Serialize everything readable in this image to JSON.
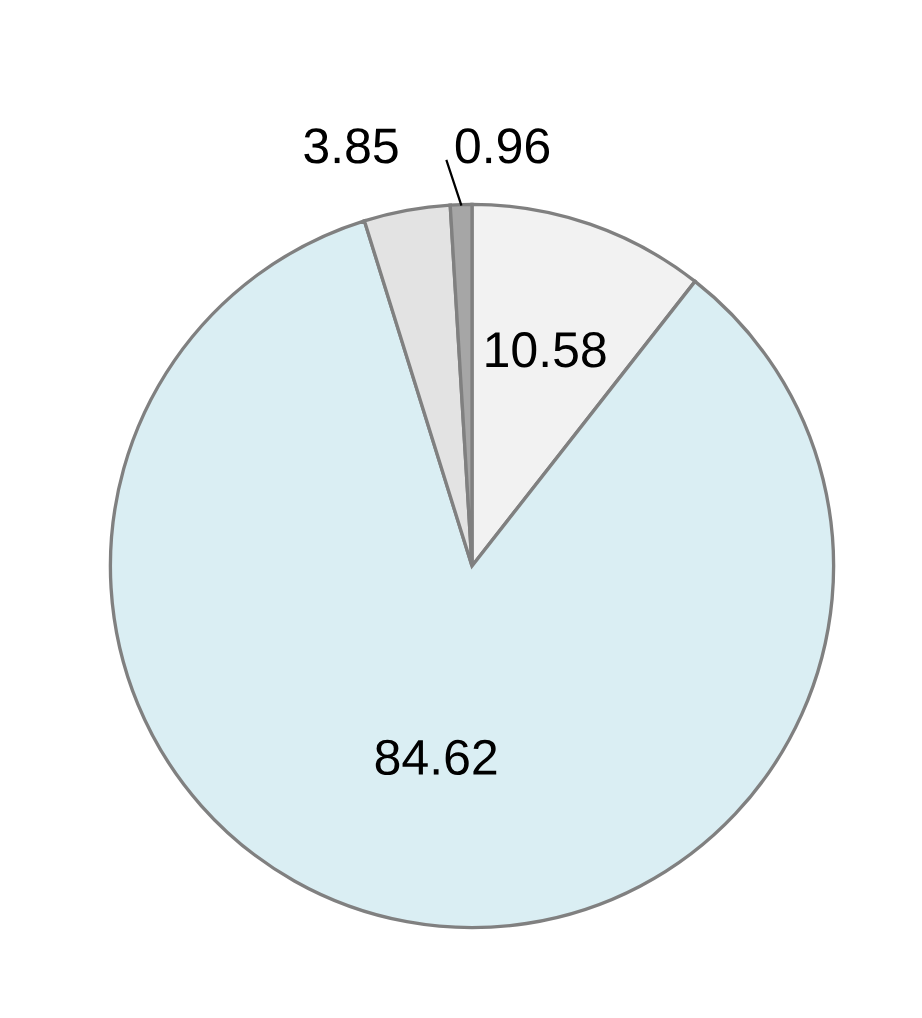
{
  "chart_data": {
    "type": "pie",
    "categories": [
      null,
      null,
      null,
      null
    ],
    "values": [
      10.58,
      84.62,
      3.85,
      0.96
    ],
    "colors": [
      "#f2f2f2",
      "#daeef3",
      "#e3e3e3",
      "#a6a6a6"
    ],
    "data_labels": true,
    "legend": false
  }
}
